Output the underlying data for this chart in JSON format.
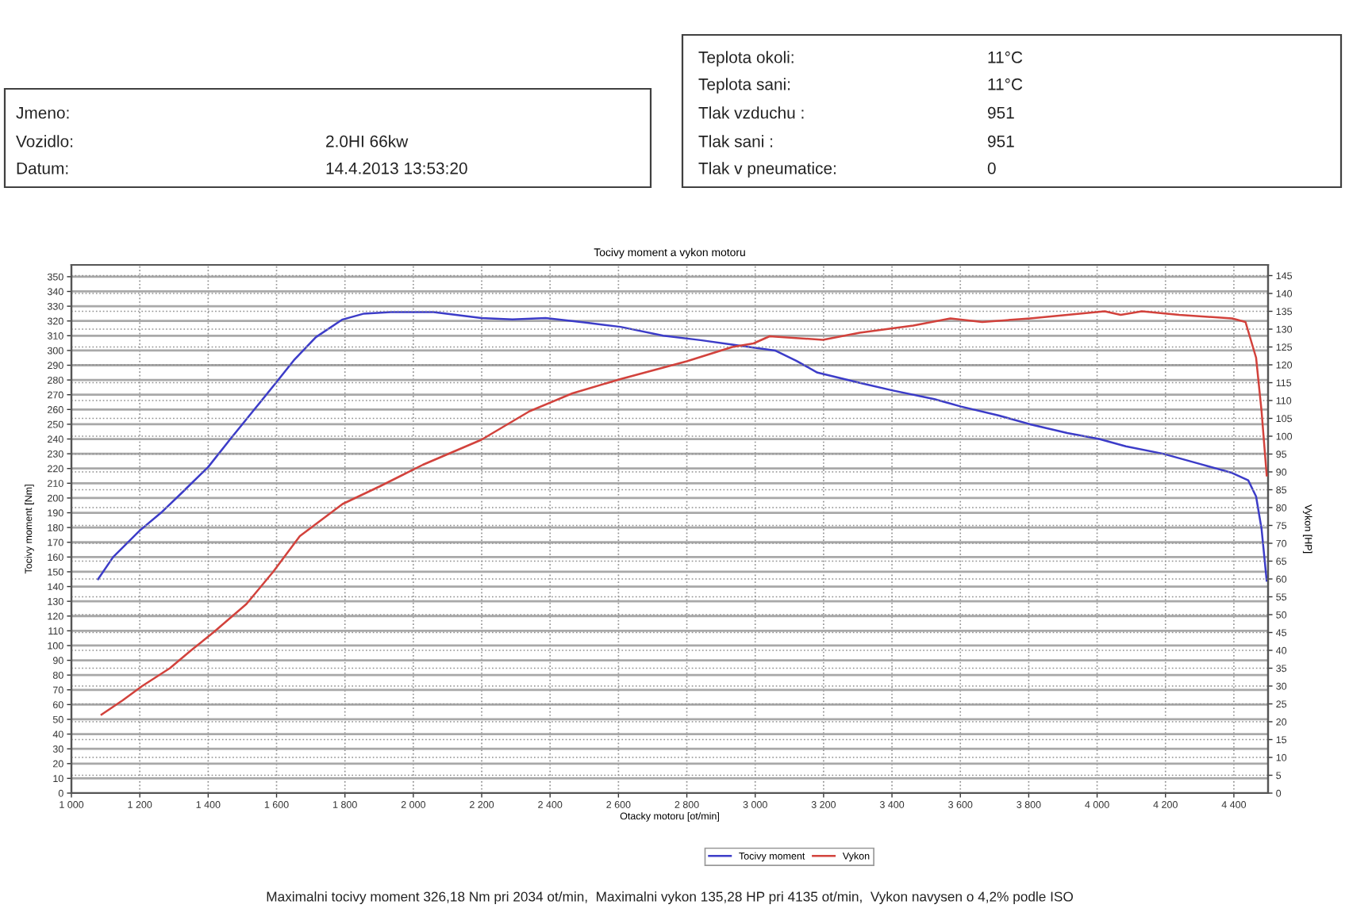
{
  "chart_data": {
    "type": "line",
    "title": "Tocivy moment a vykon motoru",
    "xlabel": "Otacky motoru [ot/min]",
    "ylabel": "Tocivy moment [Nm]",
    "y2label": "Vykon [HP]",
    "annotations": [
      "Jmeno:",
      "Vozidlo:",
      "2.0HI 66kw",
      "Datum:",
      "14.4.2013 13:53:20",
      "Teplota okoli:",
      "11°C",
      "Teplota sani:",
      "11°C",
      "Tlak vzduchu :",
      "951",
      "Tlak sani :",
      "951",
      "Tlak v pneumatice:",
      "0",
      "Maximalni tocivy moment 326,18 Nm pri 2034 ot/min,  Maximalni vykon 135,28 HP pri 4135 ot/min,  Vykon navysen o 4,2% podle ISO"
    ],
    "xlim": [
      1000,
      4500
    ],
    "xticks": [
      {
        "value": 1000,
        "label": "1 000"
      },
      {
        "value": 1200,
        "label": "1 200"
      },
      {
        "value": 1400,
        "label": "1 400"
      },
      {
        "value": 1600,
        "label": "1 600"
      },
      {
        "value": 1800,
        "label": "1 800"
      },
      {
        "value": 2000,
        "label": "2 000"
      },
      {
        "value": 2200,
        "label": "2 200"
      },
      {
        "value": 2400,
        "label": "2 400"
      },
      {
        "value": 2600,
        "label": "2 600"
      },
      {
        "value": 2800,
        "label": "2 800"
      },
      {
        "value": 3000,
        "label": "3 000"
      },
      {
        "value": 3200,
        "label": "3 200"
      },
      {
        "value": 3400,
        "label": "3 400"
      },
      {
        "value": 3600,
        "label": "3 600"
      },
      {
        "value": 3800,
        "label": "3 800"
      },
      {
        "value": 4000,
        "label": "4 000"
      },
      {
        "value": 4200,
        "label": "4 200"
      },
      {
        "value": 4400,
        "label": "4 400"
      }
    ],
    "ylim": [
      0,
      358
    ],
    "yticks": [
      0,
      10,
      20,
      30,
      40,
      50,
      60,
      70,
      80,
      90,
      100,
      110,
      120,
      130,
      140,
      150,
      160,
      170,
      180,
      190,
      200,
      210,
      220,
      230,
      240,
      250,
      260,
      270,
      280,
      290,
      300,
      310,
      320,
      330,
      340,
      350
    ],
    "y2lim": [
      0,
      148
    ],
    "y2ticks": [
      0,
      5,
      10,
      15,
      20,
      25,
      30,
      35,
      40,
      45,
      50,
      55,
      60,
      65,
      70,
      75,
      80,
      85,
      90,
      95,
      100,
      105,
      110,
      115,
      120,
      125,
      130,
      135,
      140,
      145
    ],
    "grid": true,
    "legend": "bottom",
    "line_style": "solid",
    "series": [
      {
        "name": "Tocivy moment",
        "color": "#3c3cc8",
        "axis": "y",
        "x": [
          1078,
          1122,
          1200,
          1262,
          1325,
          1400,
          1465,
          1528,
          1598,
          1653,
          1715,
          1793,
          1856,
          1934,
          2059,
          2199,
          2290,
          2387,
          2500,
          2606,
          2731,
          2840,
          2933,
          2995,
          3058,
          3120,
          3182,
          3306,
          3400,
          3524,
          3602,
          3711,
          3804,
          3913,
          4006,
          4084,
          4193,
          4302,
          4395,
          4442,
          4465,
          4481,
          4496
        ],
        "values": [
          145,
          160,
          178,
          190,
          204,
          221,
          240,
          258,
          278,
          294,
          309,
          321,
          325,
          326,
          326,
          322,
          321,
          322,
          319,
          316,
          310,
          307,
          304,
          302,
          300,
          293,
          285,
          278,
          273,
          267,
          262,
          256,
          250,
          244,
          240,
          235,
          230,
          223,
          217,
          212,
          201,
          179,
          144
        ]
      },
      {
        "name": "Vykon",
        "color": "#d2423c",
        "axis": "y2",
        "x": [
          1088,
          1150,
          1207,
          1288,
          1350,
          1415,
          1512,
          1590,
          1668,
          1793,
          1903,
          2028,
          2199,
          2340,
          2465,
          2606,
          2800,
          2933,
          2995,
          3042,
          3198,
          3306,
          3462,
          3571,
          3664,
          3804,
          3913,
          4022,
          4069,
          4131,
          4240,
          4395,
          4434,
          4465,
          4481,
          4496
        ],
        "values": [
          22,
          26,
          30,
          35,
          40,
          45,
          53,
          62,
          72,
          81,
          86,
          92,
          99,
          107,
          112,
          116,
          121,
          125,
          126,
          128,
          127,
          129,
          131,
          133,
          132,
          133,
          134,
          135,
          134,
          135,
          134,
          133,
          132,
          122,
          107,
          89
        ]
      }
    ]
  }
}
